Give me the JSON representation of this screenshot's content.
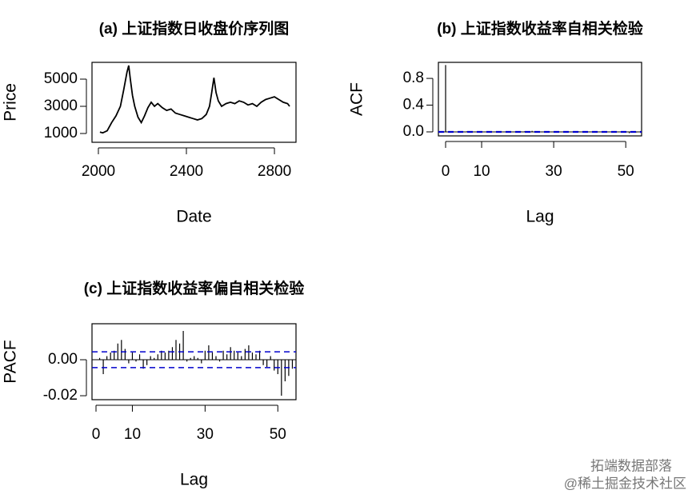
{
  "chart_data": [
    {
      "type": "line",
      "title": "(a) 上证指数日收盘价序列图",
      "x_label": "Date",
      "y_label": "Price",
      "color": "#000000",
      "x": [
        2007,
        2020,
        2040,
        2060,
        2080,
        2100,
        2115,
        2130,
        2138,
        2145,
        2155,
        2165,
        2180,
        2195,
        2210,
        2225,
        2240,
        2255,
        2270,
        2290,
        2310,
        2330,
        2350,
        2370,
        2390,
        2410,
        2430,
        2450,
        2470,
        2490,
        2505,
        2515,
        2525,
        2535,
        2545,
        2560,
        2580,
        2600,
        2620,
        2640,
        2660,
        2680,
        2700,
        2720,
        2740,
        2760,
        2780,
        2800,
        2820,
        2840,
        2860,
        2869
      ],
      "y": [
        1100,
        1050,
        1200,
        1800,
        2300,
        3000,
        4200,
        5500,
        6000,
        5000,
        3800,
        3000,
        2200,
        1800,
        2300,
        2900,
        3300,
        3000,
        3200,
        2900,
        2700,
        2800,
        2500,
        2400,
        2300,
        2200,
        2100,
        2000,
        2100,
        2400,
        3000,
        4000,
        5100,
        4000,
        3400,
        3000,
        3200,
        3300,
        3200,
        3400,
        3300,
        3100,
        3200,
        3000,
        3300,
        3500,
        3600,
        3700,
        3500,
        3300,
        3200,
        3000
      ],
      "xlim": [
        1971,
        2898
      ],
      "ylim": [
        353,
        6235
      ],
      "xticks": [
        2000,
        2400,
        2800
      ],
      "yticks": [
        1000,
        3000,
        5000
      ]
    },
    {
      "type": "stem",
      "title": "(b) 上证指数收益率自相关检验",
      "x_label": "Lag",
      "y_label": "ACF",
      "color": "#000000",
      "ci_color": "#0000cc",
      "x": [
        0,
        1,
        2,
        3,
        4,
        5,
        6,
        7,
        8,
        9,
        10,
        11,
        12,
        13,
        14,
        15,
        16,
        17,
        18,
        19,
        20,
        21,
        22,
        23,
        24,
        25,
        26,
        27,
        28,
        29,
        30,
        31,
        32,
        33,
        34,
        35,
        36,
        37,
        38,
        39,
        40,
        41,
        42,
        43,
        44,
        45,
        46,
        47,
        48,
        49,
        50,
        51,
        52,
        53,
        54
      ],
      "values": [
        1,
        0.003,
        -0.006,
        0.004,
        0.005,
        0.006,
        0.01,
        0.01,
        0.005,
        -0.002,
        0.004,
        -0.001,
        0.003,
        -0.005,
        -0.003,
        0.002,
        0.001,
        0.003,
        0.005,
        0.004,
        0.005,
        0.007,
        0.01,
        0.009,
        0.015,
        -0.001,
        0.001,
        0.002,
        0.001,
        -0.002,
        0.005,
        0.008,
        0.004,
        0.002,
        -0.001,
        0.005,
        0.003,
        0.007,
        0.005,
        0.004,
        0.002,
        0.006,
        0.008,
        0.004,
        0.003,
        0.005,
        -0.003,
        -0.004,
        0.002,
        -0.006,
        -0.008,
        -0.019,
        -0.011,
        -0.008,
        -0.005
      ],
      "ci": [
        0.0044,
        -0.0044
      ],
      "xlim": [
        -2,
        54.4
      ],
      "ylim": [
        -0.06,
        1.04
      ],
      "xticks": [
        0,
        10,
        30,
        50
      ],
      "yticks": [
        {
          "value": 0,
          "label": "0.0"
        },
        {
          "value": 0.4,
          "label": "0.4"
        },
        {
          "value": 0.8,
          "label": "0.8"
        }
      ]
    },
    {
      "type": "stem",
      "title": "(c) 上证指数收益率偏自相关检验",
      "x_label": "Lag",
      "y_label": "PACF",
      "color": "#000000",
      "ci_color": "#0000cc",
      "x": [
        1,
        2,
        3,
        4,
        5,
        6,
        7,
        8,
        9,
        10,
        11,
        12,
        13,
        14,
        15,
        16,
        17,
        18,
        19,
        20,
        21,
        22,
        23,
        24,
        25,
        26,
        27,
        28,
        29,
        30,
        31,
        32,
        33,
        34,
        35,
        36,
        37,
        38,
        39,
        40,
        41,
        42,
        43,
        44,
        45,
        46,
        47,
        48,
        49,
        50,
        51,
        52,
        53,
        54
      ],
      "values": [
        0.001,
        -0.008,
        0.002,
        0.004,
        0.005,
        0.009,
        0.011,
        0.006,
        -0.002,
        0.004,
        -0.001,
        0.003,
        -0.005,
        -0.003,
        0.002,
        0.001,
        0.003,
        0.005,
        0.004,
        0.005,
        0.007,
        0.011,
        0.009,
        0.016,
        -0.001,
        0.001,
        0.002,
        0.001,
        -0.002,
        0.005,
        0.008,
        0.004,
        0.002,
        -0.001,
        0.005,
        0.003,
        0.007,
        0.005,
        0.004,
        0.002,
        0.006,
        0.008,
        0.004,
        0.003,
        0.005,
        -0.003,
        -0.004,
        0.002,
        -0.006,
        -0.008,
        -0.02,
        -0.012,
        -0.009,
        -0.005
      ],
      "ci": [
        0.0044,
        -0.0044
      ],
      "xlim": [
        -1.1,
        55
      ],
      "ylim": [
        -0.0222,
        0.02
      ],
      "xticks": [
        0,
        10,
        30,
        50
      ],
      "yticks": [
        {
          "value": -0.02,
          "label": "-0.02"
        },
        {
          "value": 0,
          "label": "0.00"
        }
      ]
    }
  ],
  "watermark": [
    "拓端数据部落",
    "@稀土掘金技术社区"
  ]
}
